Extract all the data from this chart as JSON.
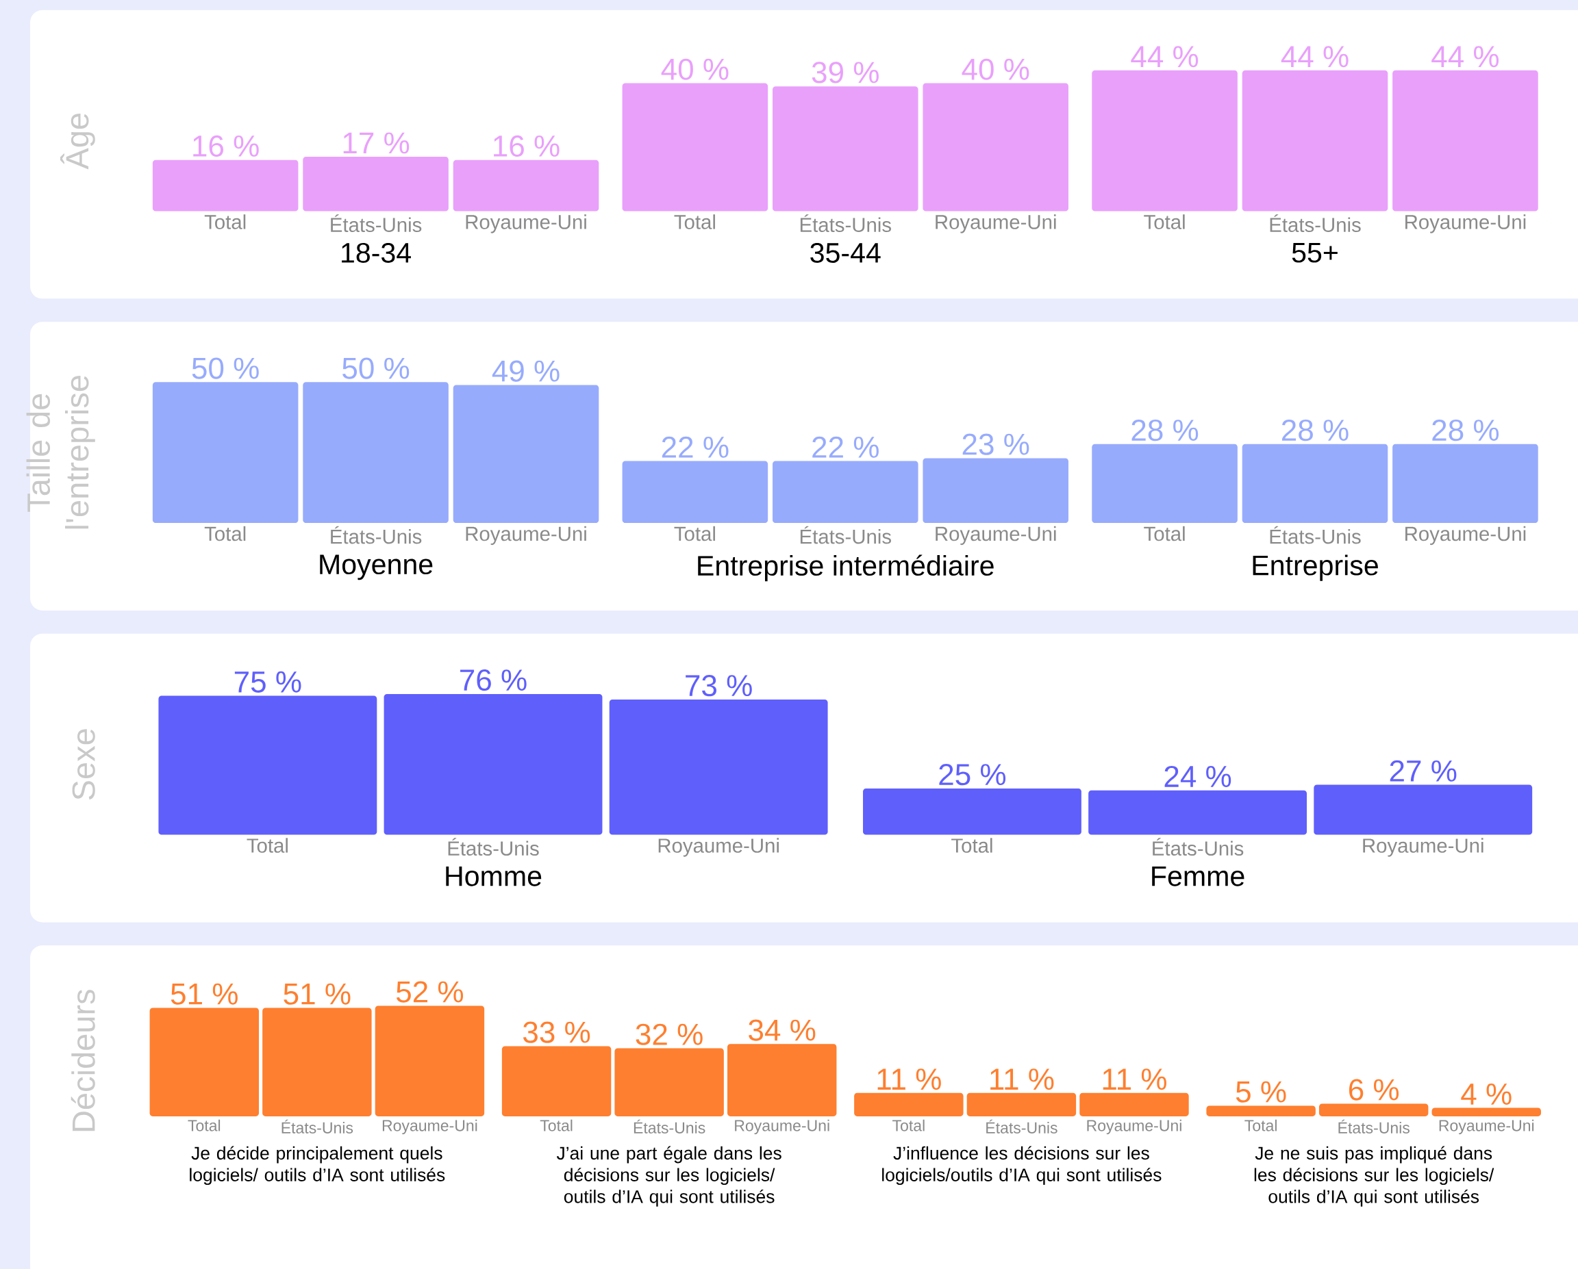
{
  "chart_data": [
    {
      "type": "bar",
      "ylabel": "Âge",
      "categories": [
        "18-34",
        "35-44",
        "55+"
      ],
      "series": [
        {
          "name": "Total",
          "color": "#e9a0fb",
          "values": [
            16,
            40,
            44
          ],
          "value_labels": [
            "16 %",
            "40 %",
            "44 %"
          ]
        },
        {
          "name": "États-Unis",
          "color": "#e9a0fb",
          "values": [
            17,
            39,
            44
          ],
          "value_labels": [
            "17 %",
            "39 %",
            "44 %"
          ]
        },
        {
          "name": "Royaume-Uni",
          "color": "#e9a0fb",
          "values": [
            16,
            40,
            44
          ],
          "value_labels": [
            "16 %",
            "40 %",
            "44 %"
          ]
        }
      ]
    },
    {
      "type": "bar",
      "ylabel": "Taille de l'entreprise",
      "categories": [
        "Moyenne",
        "Entreprise intermédiaire",
        "Entreprise"
      ],
      "series": [
        {
          "name": "Total",
          "color": "#97abfd",
          "values": [
            50,
            22,
            28
          ],
          "value_labels": [
            "50 %",
            "22 %",
            "28 %"
          ]
        },
        {
          "name": "États-Unis",
          "color": "#97abfd",
          "values": [
            50,
            22,
            28
          ],
          "value_labels": [
            "50 %",
            "22 %",
            "28 %"
          ]
        },
        {
          "name": "Royaume-Uni",
          "color": "#97abfd",
          "values": [
            49,
            23,
            28
          ],
          "value_labels": [
            "49 %",
            "23 %",
            "28 %"
          ]
        }
      ]
    },
    {
      "type": "bar",
      "ylabel": "Sexe",
      "categories": [
        "Homme",
        "Femme"
      ],
      "series": [
        {
          "name": "Total",
          "color": "#5f5ffc",
          "values": [
            75,
            25
          ],
          "value_labels": [
            "75 %",
            "25 %"
          ]
        },
        {
          "name": "États-Unis",
          "color": "#5f5ffc",
          "values": [
            76,
            24
          ],
          "value_labels": [
            "76 %",
            "24 %"
          ]
        },
        {
          "name": "Royaume-Uni",
          "color": "#5f5ffc",
          "values": [
            73,
            27
          ],
          "value_labels": [
            "73 %",
            "27 %"
          ]
        }
      ]
    },
    {
      "type": "bar",
      "ylabel": "Décideurs",
      "categories": [
        "Je décide principalement quels logiciels/ outils d’IA sont utilisés",
        "J’ai une part égale dans les décisions sur les logiciels/ outils d’IA qui sont utilisés",
        "J’influence les décisions sur les logiciels/outils d’IA qui sont utilisés",
        "Je ne suis pas impliqué dans les décisions sur les logiciels/ outils d’IA qui sont utilisés"
      ],
      "series": [
        {
          "name": "Total",
          "color": "#fe7f2f",
          "values": [
            51,
            33,
            11,
            5
          ],
          "value_labels": [
            "51 %",
            "33 %",
            "11 %",
            "5 %"
          ]
        },
        {
          "name": "États-Unis",
          "color": "#fe7f2f",
          "values": [
            51,
            32,
            11,
            6
          ],
          "value_labels": [
            "51 %",
            "32 %",
            "11 %",
            "6 %"
          ]
        },
        {
          "name": "Royaume-Uni",
          "color": "#fe7f2f",
          "values": [
            52,
            34,
            11,
            4
          ],
          "value_labels": [
            "52 %",
            "34 %",
            "11 %",
            "4 %"
          ]
        }
      ]
    }
  ]
}
